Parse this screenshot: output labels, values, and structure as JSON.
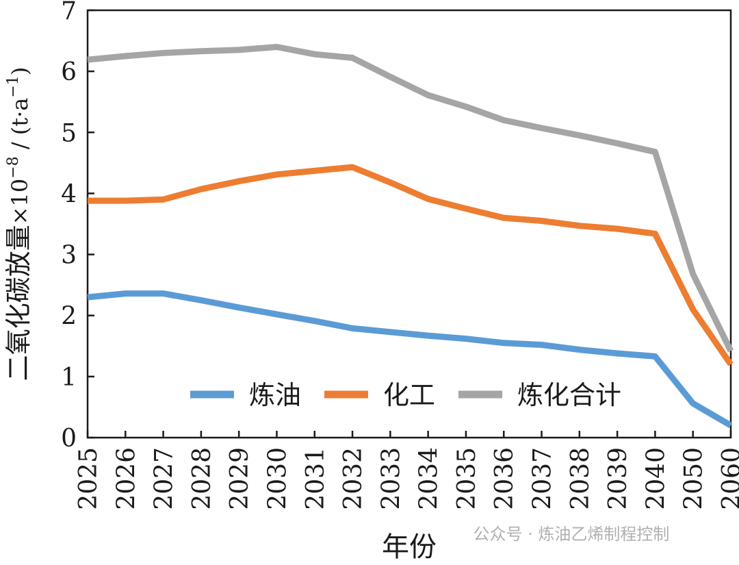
{
  "chart_data": {
    "type": "line",
    "categories": [
      "2025",
      "2026",
      "2027",
      "2028",
      "2029",
      "2030",
      "2031",
      "2032",
      "2033",
      "2034",
      "2035",
      "2036",
      "2037",
      "2038",
      "2039",
      "2040",
      "2050",
      "2060"
    ],
    "series": [
      {
        "name": "炼油",
        "color": "#5b9bd5",
        "values": [
          2.3,
          2.36,
          2.36,
          2.25,
          2.13,
          2.02,
          1.91,
          1.79,
          1.73,
          1.67,
          1.62,
          1.55,
          1.52,
          1.44,
          1.38,
          1.33,
          0.56,
          0.2
        ]
      },
      {
        "name": "化工",
        "color": "#ed7d31",
        "values": [
          3.88,
          3.88,
          3.9,
          4.07,
          4.2,
          4.31,
          4.37,
          4.43,
          4.18,
          3.91,
          3.75,
          3.6,
          3.55,
          3.47,
          3.42,
          3.34,
          2.1,
          1.2
        ]
      },
      {
        "name": "炼化合计",
        "color": "#a5a5a5",
        "values": [
          6.19,
          6.25,
          6.3,
          6.33,
          6.35,
          6.4,
          6.28,
          6.22,
          5.91,
          5.61,
          5.42,
          5.2,
          5.07,
          4.95,
          4.82,
          4.68,
          2.68,
          1.42
        ]
      }
    ],
    "ylim": [
      0,
      7
    ],
    "yticks": [
      "0",
      "1",
      "2",
      "3",
      "4",
      "5",
      "6",
      "7"
    ],
    "xlabel": "年份",
    "ylabel_main": "二氧化碳放量",
    "ylabel_unit": "×10",
    "ylabel_exp": "−8",
    "ylabel_tail": " / (t·a",
    "ylabel_exp2": "−1",
    "ylabel_close": ")",
    "legend_position": "bottom-center",
    "grid": false
  },
  "watermark": "公众号 · 炼油乙烯制程控制"
}
